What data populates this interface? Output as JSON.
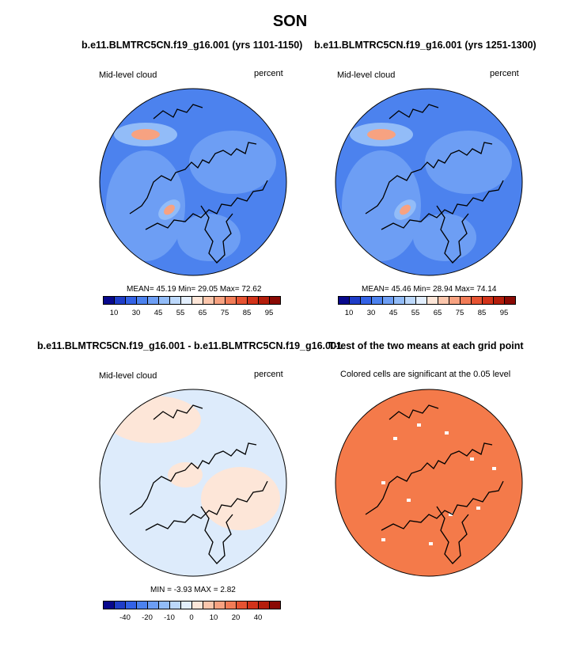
{
  "figure": {
    "season": "SON"
  },
  "panels": [
    {
      "title": "b.e11.BLMTRC5CN.f19_g16.001 (yrs 1101-1150)",
      "left_label": "Mid-level cloud",
      "right_label": "percent",
      "stats": "MEAN=  45.19  Min=  29.05  Max=  72.62",
      "type": "field"
    },
    {
      "title": "b.e11.BLMTRC5CN.f19_g16.001 (yrs 1251-1300)",
      "left_label": "Mid-level cloud",
      "right_label": "percent",
      "stats": "MEAN=  45.46  Min=  28.94  Max=  74.14",
      "type": "field"
    },
    {
      "title": "b.e11.BLMTRC5CN.f19_g16.001 - b.e11.BLMTRC5CN.f19_g16.001",
      "left_label": "Mid-level cloud",
      "right_label": "percent",
      "stats": "MIN =  -3.93 MAX =   2.82",
      "type": "diff"
    },
    {
      "title": "T-test of the two means at each grid point",
      "left_label": "Colored cells are significant at the 0.05 level",
      "right_label": "",
      "stats": "",
      "type": "ttest"
    }
  ],
  "colorbar_field": {
    "colors": [
      "#08088c",
      "#1f3dc8",
      "#3362e6",
      "#4c82ee",
      "#6d9ef4",
      "#92bcf8",
      "#bcd8fb",
      "#e2eefd",
      "#fde6d8",
      "#fbc6ac",
      "#f7a281",
      "#f17c57",
      "#e65332",
      "#d2331a",
      "#b41e0c",
      "#8a0a04"
    ],
    "ticks": [
      "10",
      "30",
      "45",
      "55",
      "65",
      "75",
      "85",
      "95"
    ]
  },
  "colorbar_diff": {
    "colors": [
      "#08088c",
      "#1f3dc8",
      "#3362e6",
      "#4c82ee",
      "#6d9ef4",
      "#92bcf8",
      "#bcd8fb",
      "#e2eefd",
      "#fde6d8",
      "#fbc6ac",
      "#f7a281",
      "#f17c57",
      "#e65332",
      "#d2331a",
      "#b41e0c",
      "#8a0a04"
    ],
    "ticks": [
      "-40",
      "-20",
      "-10",
      "0",
      "10",
      "20",
      "40"
    ]
  },
  "map_colors": {
    "field_base": "#4c82ee",
    "field_light": "#6d9ef4",
    "field_lighter": "#92bcf8",
    "field_warm": "#f7a281",
    "diff_base": "#ddebfb",
    "diff_warm": "#fde6d8",
    "ttest_fill": "#f47a4a"
  }
}
